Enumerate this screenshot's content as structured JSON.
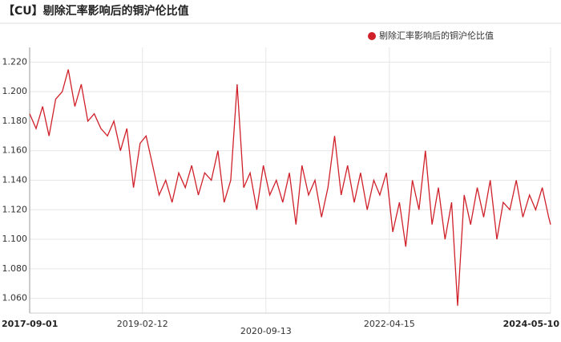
{
  "chart_data": {
    "type": "line",
    "title": "【CU】剔除汇率影响后的铜沪伦比值",
    "x": [
      "2017-09-01",
      "2017-10-01",
      "2017-11-01",
      "2017-12-01",
      "2018-01-01",
      "2018-02-01",
      "2018-03-01",
      "2018-04-01",
      "2018-05-01",
      "2018-06-01",
      "2018-07-01",
      "2018-08-01",
      "2018-09-01",
      "2018-10-01",
      "2018-11-01",
      "2018-12-01",
      "2019-01-01",
      "2019-02-01",
      "2019-03-01",
      "2019-04-01",
      "2019-05-01",
      "2019-06-01",
      "2019-07-01",
      "2019-08-01",
      "2019-09-01",
      "2019-10-01",
      "2019-11-01",
      "2019-12-01",
      "2020-01-01",
      "2020-02-01",
      "2020-03-01",
      "2020-04-01",
      "2020-05-01",
      "2020-06-01",
      "2020-07-01",
      "2020-08-01",
      "2020-09-01",
      "2020-10-01",
      "2020-11-01",
      "2020-12-01",
      "2021-01-01",
      "2021-02-01",
      "2021-03-01",
      "2021-04-01",
      "2021-05-01",
      "2021-06-01",
      "2021-07-01",
      "2021-08-01",
      "2021-09-01",
      "2021-10-01",
      "2021-11-01",
      "2021-12-01",
      "2022-01-01",
      "2022-02-01",
      "2022-03-01",
      "2022-04-01",
      "2022-05-01",
      "2022-06-01",
      "2022-07-01",
      "2022-08-01",
      "2022-09-01",
      "2022-10-01",
      "2022-11-01",
      "2022-12-01",
      "2023-01-01",
      "2023-02-01",
      "2023-03-01",
      "2023-04-01",
      "2023-05-01",
      "2023-06-01",
      "2023-07-01",
      "2023-08-01",
      "2023-09-01",
      "2023-10-01",
      "2023-11-01",
      "2023-12-01",
      "2024-01-01",
      "2024-02-01",
      "2024-03-01",
      "2024-04-01",
      "2024-05-01",
      "2024-05-10"
    ],
    "series": [
      {
        "name": "剔除汇率影响后的铜沪伦比值",
        "color": "#d0202a",
        "values": [
          1.185,
          1.175,
          1.19,
          1.17,
          1.195,
          1.2,
          1.215,
          1.19,
          1.205,
          1.18,
          1.185,
          1.175,
          1.17,
          1.18,
          1.16,
          1.175,
          1.135,
          1.165,
          1.17,
          1.15,
          1.13,
          1.14,
          1.125,
          1.145,
          1.135,
          1.15,
          1.13,
          1.145,
          1.14,
          1.16,
          1.125,
          1.14,
          1.205,
          1.135,
          1.145,
          1.12,
          1.15,
          1.13,
          1.14,
          1.125,
          1.145,
          1.11,
          1.15,
          1.13,
          1.14,
          1.115,
          1.135,
          1.17,
          1.13,
          1.15,
          1.125,
          1.145,
          1.12,
          1.14,
          1.13,
          1.145,
          1.105,
          1.125,
          1.095,
          1.14,
          1.12,
          1.16,
          1.11,
          1.135,
          1.1,
          1.125,
          1.055,
          1.13,
          1.11,
          1.135,
          1.115,
          1.14,
          1.1,
          1.125,
          1.12,
          1.14,
          1.115,
          1.13,
          1.12,
          1.135,
          1.115,
          1.11
        ]
      }
    ],
    "xlim": [
      "2017-09-01",
      "2024-05-10"
    ],
    "xticks": [
      "2017-09-01",
      "2019-02-12",
      "2020-09-13",
      "2022-04-15",
      "2024-05-10"
    ],
    "ylim": [
      1.05,
      1.23
    ],
    "yticks": [
      {
        "value": 1.06,
        "label": "1.060"
      },
      {
        "value": 1.08,
        "label": "1.080"
      },
      {
        "value": 1.1,
        "label": "1.100"
      },
      {
        "value": 1.12,
        "label": "1.120"
      },
      {
        "value": 1.14,
        "label": "1.140"
      },
      {
        "value": 1.16,
        "label": "1.160"
      },
      {
        "value": 1.18,
        "label": "1.180"
      },
      {
        "value": 1.2,
        "label": "1.200"
      },
      {
        "value": 1.22,
        "label": "1.220"
      }
    ],
    "grid": true,
    "legend": "top-right"
  }
}
